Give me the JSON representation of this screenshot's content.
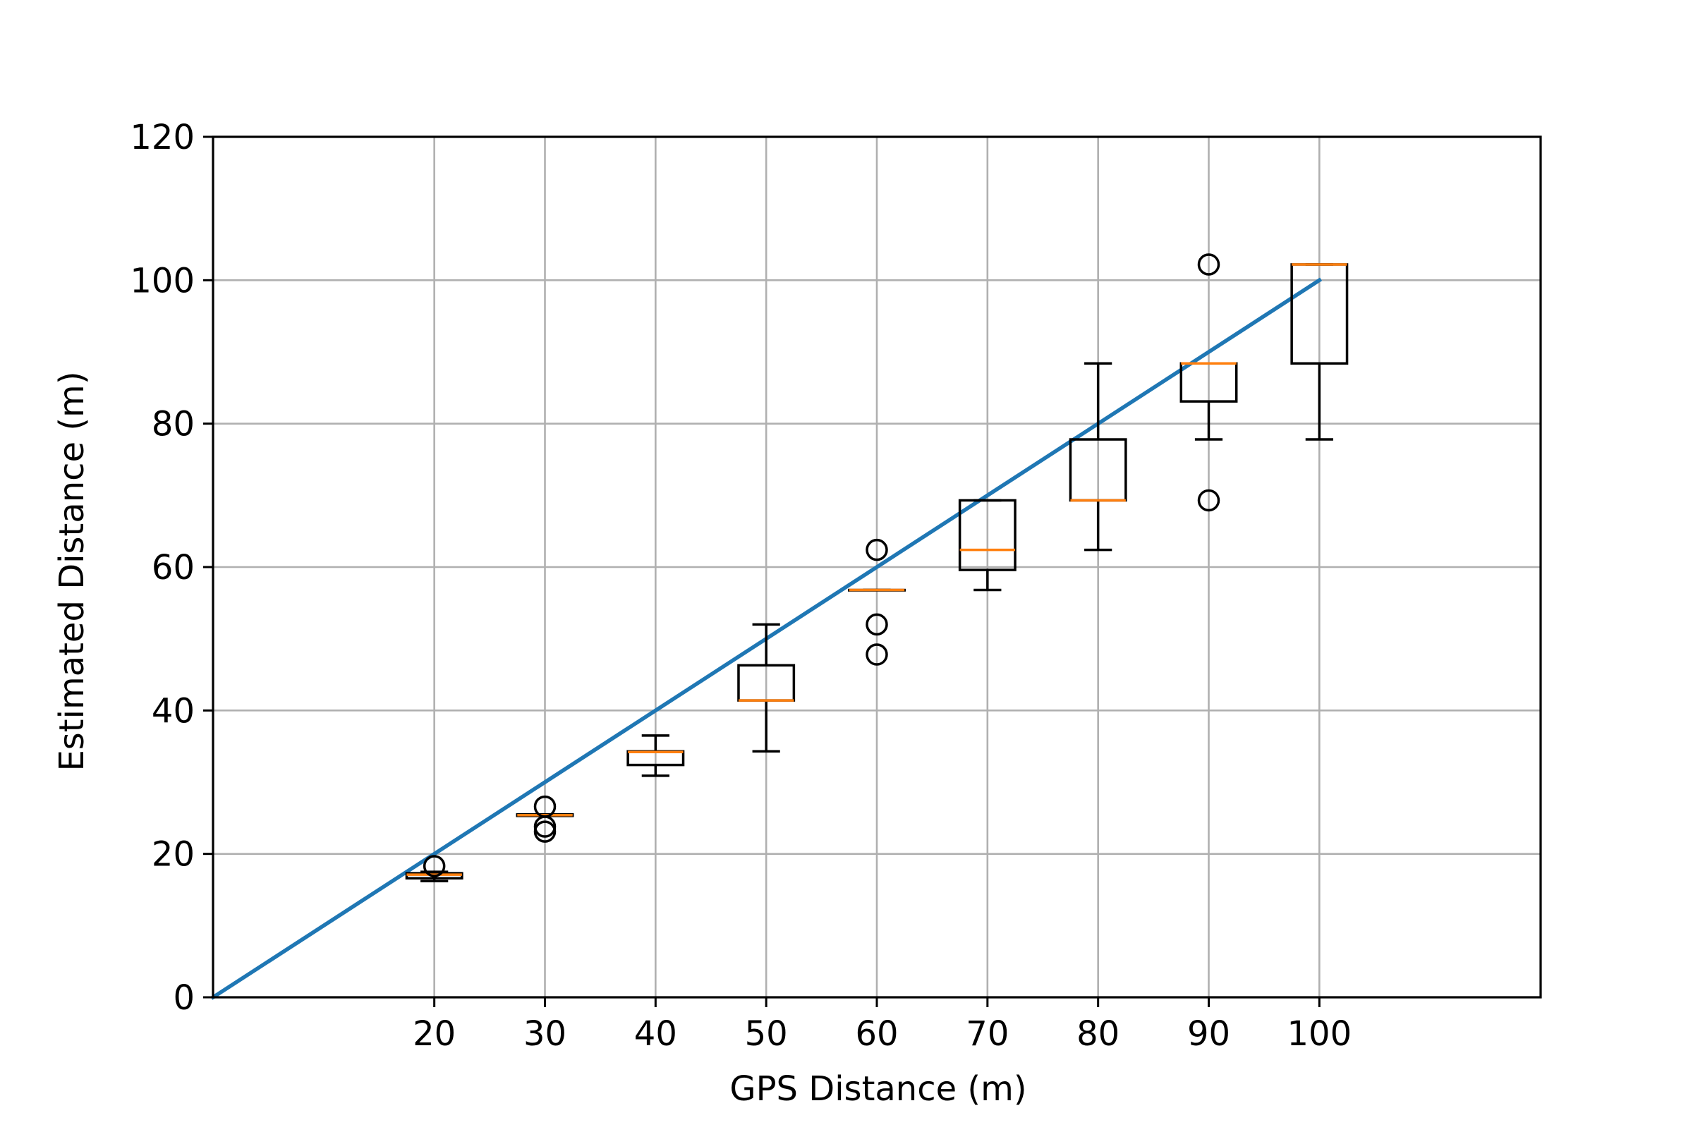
{
  "chart_data": {
    "type": "box",
    "title": "",
    "xlabel": "GPS Distance (m)",
    "ylabel": "Estimated Distance (m)",
    "xlim": [
      0,
      120
    ],
    "ylim": [
      0,
      120
    ],
    "x_ticks": [
      20,
      30,
      40,
      50,
      60,
      70,
      80,
      90,
      100
    ],
    "y_ticks": [
      0,
      20,
      40,
      60,
      80,
      100,
      120
    ],
    "grid": true,
    "colors": {
      "reference_line": "#1f77b4",
      "median": "#ff7f0e",
      "box": "#000000",
      "grid": "#b0b0b0"
    },
    "reference_line": {
      "x": [
        0,
        100
      ],
      "y": [
        0,
        100
      ]
    },
    "boxes": [
      {
        "x": 20,
        "whisker_low": 16.2,
        "q1": 16.6,
        "median": 17.1,
        "q3": 17.3,
        "whisker_high": 17.5,
        "outliers": [
          18.3
        ]
      },
      {
        "x": 30,
        "whisker_low": 25.3,
        "q1": 25.3,
        "median": 25.4,
        "q3": 25.5,
        "whisker_high": 25.5,
        "outliers": [
          26.6,
          23.8,
          23.1
        ]
      },
      {
        "x": 40,
        "whisker_low": 30.9,
        "q1": 32.4,
        "median": 34.2,
        "q3": 34.3,
        "whisker_high": 36.5,
        "outliers": []
      },
      {
        "x": 50,
        "whisker_low": 34.3,
        "q1": 41.4,
        "median": 41.4,
        "q3": 46.3,
        "whisker_high": 52.0,
        "outliers": []
      },
      {
        "x": 60,
        "whisker_low": 56.8,
        "q1": 56.8,
        "median": 56.8,
        "q3": 56.8,
        "whisker_high": 56.8,
        "outliers": [
          62.4,
          52.0,
          47.8
        ]
      },
      {
        "x": 70,
        "whisker_low": 56.8,
        "q1": 59.6,
        "median": 62.4,
        "q3": 69.3,
        "whisker_high": 69.3,
        "outliers": []
      },
      {
        "x": 80,
        "whisker_low": 62.4,
        "q1": 69.3,
        "median": 69.3,
        "q3": 77.8,
        "whisker_high": 88.4,
        "outliers": []
      },
      {
        "x": 90,
        "whisker_low": 77.8,
        "q1": 83.1,
        "median": 88.4,
        "q3": 88.4,
        "whisker_high": 88.4,
        "outliers": [
          102.2,
          69.3
        ]
      },
      {
        "x": 100,
        "whisker_low": 77.8,
        "q1": 88.4,
        "median": 102.2,
        "q3": 102.2,
        "whisker_high": 102.2,
        "outliers": []
      }
    ]
  }
}
